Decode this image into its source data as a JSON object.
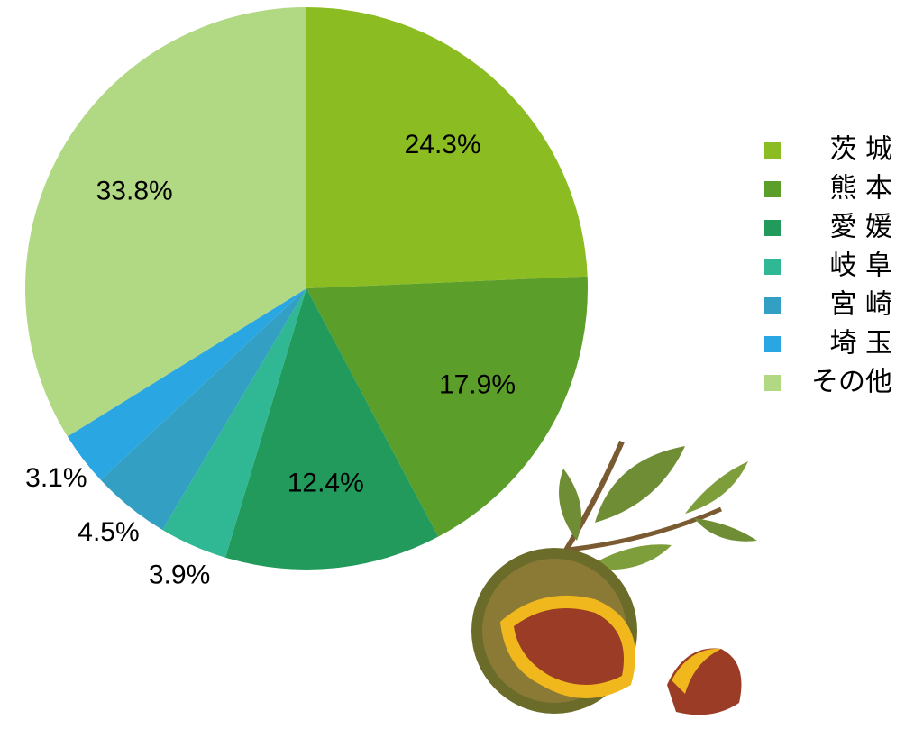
{
  "chart_data": {
    "type": "pie",
    "categories": [
      "茨 城",
      "熊 本",
      "愛 媛",
      "岐 阜",
      "宮 崎",
      "埼 玉",
      "その他"
    ],
    "values": [
      24.3,
      17.9,
      12.4,
      3.9,
      4.5,
      3.1,
      33.8
    ],
    "value_labels": [
      "24.3%",
      "17.9%",
      "12.4%",
      "3.9%",
      "4.5%",
      "3.1%",
      "33.8%"
    ],
    "colors": [
      "#8bbd22",
      "#5c9e2a",
      "#219a5b",
      "#2fb893",
      "#339fc2",
      "#2aa7e2",
      "#b1d883"
    ],
    "legend": "right"
  }
}
